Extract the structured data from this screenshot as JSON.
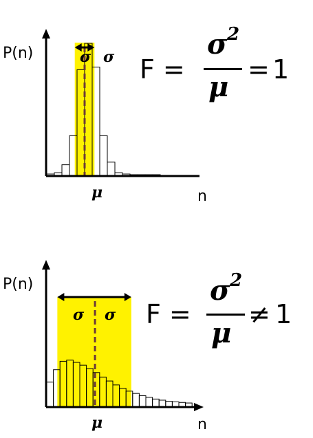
{
  "panels": [
    {
      "y_axis_label": "P(n)",
      "x_axis_label": "n",
      "mean_label": "μ",
      "sigma_left": "σ",
      "sigma_right": "σ",
      "equation": {
        "lhs": "F =",
        "numerator": "σ",
        "exponent": "2",
        "denominator": "μ",
        "relation": "=",
        "rhs": "1"
      },
      "bars": [
        0.01,
        0.02,
        0.08,
        0.3,
        0.8,
        1.0,
        0.82,
        0.3,
        0.1,
        0.02,
        0.01,
        0.005,
        0.005,
        0.005,
        0.005
      ],
      "mean_bin": 5.0,
      "shaded_bins": [
        3.7,
        6.3
      ],
      "highlight_color": "#fff200",
      "mean_line_color": "#6b3a3a"
    },
    {
      "y_axis_label": "P(n)",
      "x_axis_label": "n",
      "mean_label": "μ",
      "sigma_left": "σ",
      "sigma_right": "σ",
      "equation": {
        "lhs": "F =",
        "numerator": "σ",
        "exponent": "2",
        "denominator": "μ",
        "relation": "≠",
        "rhs": "1"
      },
      "bars": [
        0.43,
        0.65,
        0.8,
        0.82,
        0.78,
        0.73,
        0.67,
        0.6,
        0.52,
        0.45,
        0.38,
        0.32,
        0.27,
        0.23,
        0.19,
        0.16,
        0.13,
        0.11,
        0.09,
        0.08,
        0.07,
        0.06
      ],
      "mean_bin": 7.3,
      "shaded_bins": [
        1.6,
        12.8
      ],
      "highlight_color": "#fff200",
      "mean_line_color": "#6b3a3a"
    }
  ]
}
